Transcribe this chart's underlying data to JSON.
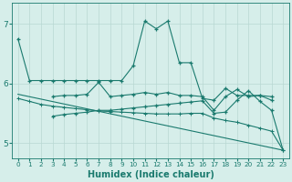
{
  "xlabel": "Humidex (Indice chaleur)",
  "bg_color": "#d6eeea",
  "line_color": "#1a7a6e",
  "grid_color": "#b8d8d2",
  "xlim": [
    -0.5,
    23.5
  ],
  "ylim": [
    4.75,
    7.35
  ],
  "yticks": [
    5,
    6,
    7
  ],
  "xticks": [
    0,
    1,
    2,
    3,
    4,
    5,
    6,
    7,
    8,
    9,
    10,
    11,
    12,
    13,
    14,
    15,
    16,
    17,
    18,
    19,
    20,
    21,
    22,
    23
  ],
  "line1_x": [
    0,
    1,
    2,
    3,
    4,
    5,
    6,
    7,
    8,
    9,
    10,
    11,
    12,
    13,
    14,
    15,
    16,
    17,
    18,
    19,
    20,
    21,
    22
  ],
  "line1_y": [
    6.75,
    6.05,
    6.05,
    6.05,
    6.05,
    6.05,
    6.05,
    6.05,
    6.05,
    6.05,
    6.3,
    7.05,
    6.92,
    7.05,
    6.35,
    6.35,
    5.75,
    5.72,
    5.92,
    5.8,
    5.8,
    5.8,
    5.72
  ],
  "line2_x": [
    3,
    4,
    5,
    6,
    7,
    8,
    9,
    10,
    11,
    12,
    13,
    14,
    15,
    16,
    17,
    18,
    19,
    20,
    21,
    22
  ],
  "line2_y": [
    5.78,
    5.8,
    5.8,
    5.82,
    6.02,
    5.78,
    5.8,
    5.82,
    5.85,
    5.82,
    5.85,
    5.8,
    5.8,
    5.78,
    5.55,
    5.78,
    5.9,
    5.78,
    5.8,
    5.78
  ],
  "line3_x": [
    3,
    4,
    5,
    6,
    7,
    8,
    9,
    10,
    11,
    12,
    13,
    14,
    15,
    16,
    17,
    18,
    19,
    20,
    21,
    22,
    23
  ],
  "line3_y": [
    5.45,
    5.48,
    5.5,
    5.52,
    5.55,
    5.55,
    5.57,
    5.59,
    5.61,
    5.63,
    5.65,
    5.67,
    5.69,
    5.71,
    5.5,
    5.52,
    5.72,
    5.88,
    5.7,
    5.55,
    4.88
  ],
  "line4_x": [
    0,
    1,
    2,
    3,
    4,
    5,
    6,
    7,
    8,
    9,
    10,
    11,
    12,
    13,
    14,
    15,
    16,
    17,
    18,
    19,
    20,
    21,
    22,
    23
  ],
  "line4_y": [
    5.75,
    5.7,
    5.65,
    5.62,
    5.6,
    5.58,
    5.56,
    5.54,
    5.53,
    5.52,
    5.51,
    5.5,
    5.49,
    5.49,
    5.49,
    5.5,
    5.5,
    5.42,
    5.38,
    5.35,
    5.3,
    5.25,
    5.2,
    4.88
  ],
  "line5_x": [
    0,
    23
  ],
  "line5_y": [
    5.82,
    4.88
  ]
}
